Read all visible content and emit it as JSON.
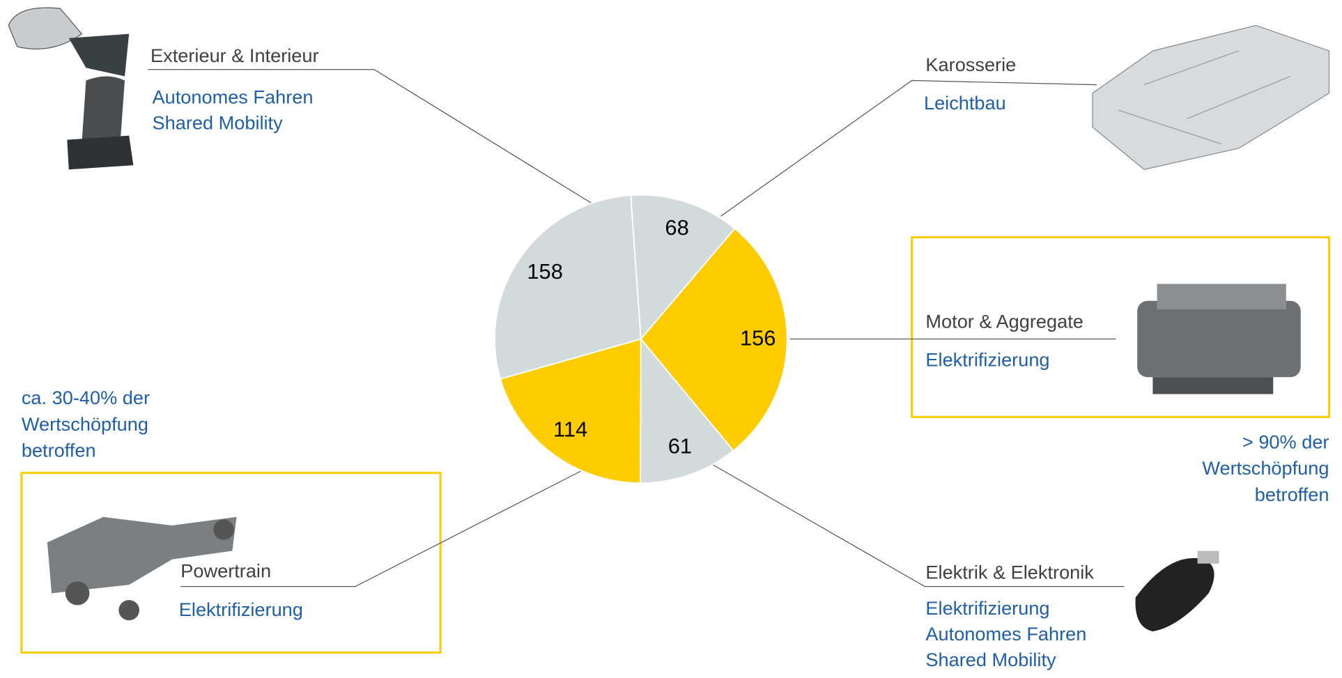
{
  "chart_data": {
    "type": "pie",
    "categories": [
      "Karosserie",
      "Motor & Aggregate",
      "Elektrik & Elektronik",
      "Powertrain",
      "Exterieur & Interieur"
    ],
    "values": [
      68,
      156,
      61,
      114,
      158
    ],
    "colors": [
      "#d3dadc",
      "#fecc00",
      "#d3dadc",
      "#fecc00",
      "#d3dadc"
    ],
    "topics": [
      [
        "Leichtbau"
      ],
      [
        "Elektrifizierung"
      ],
      [
        "Elektrifizierung",
        "Autonomes Fahren",
        "Shared Mobility"
      ],
      [
        "Elektrifizierung"
      ],
      [
        "Autonomes Fahren",
        "Shared Mobility"
      ]
    ],
    "annotations": [
      {
        "lines": [
          "ca. 30-40% der",
          "Wertschöpfung",
          "betroffen"
        ]
      },
      {
        "lines": [
          "> 90% der",
          "Wertschöpfung",
          "betroffen"
        ]
      }
    ]
  }
}
